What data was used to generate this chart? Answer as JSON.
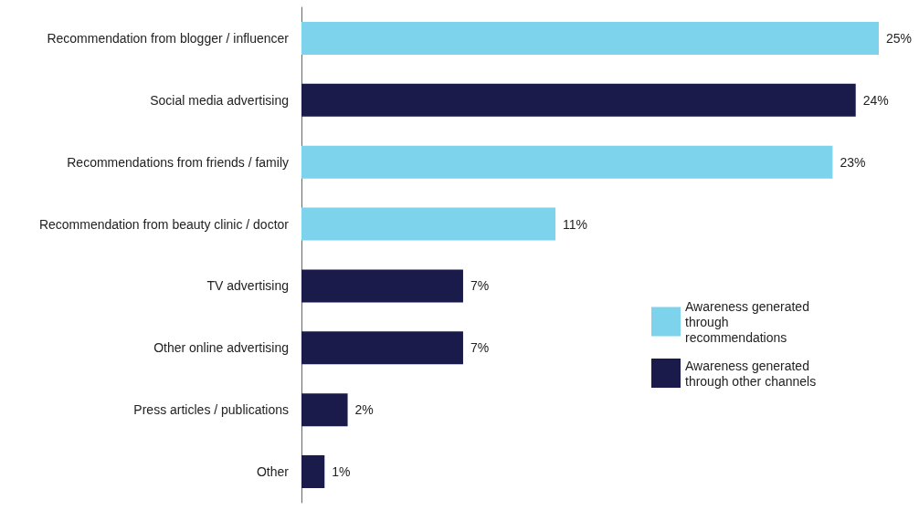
{
  "chart_data": {
    "type": "bar",
    "orientation": "horizontal",
    "categories": [
      "Recommendation from blogger / influencer",
      "Social media advertising",
      "Recommendations from friends / family",
      "Recommendation from beauty clinic / doctor",
      "TV advertising",
      "Other online advertising",
      "Press articles / publications",
      "Other"
    ],
    "series": [
      {
        "name": "Awareness generated through recommendations",
        "color": "#7dd3ec",
        "values": [
          25,
          null,
          23,
          11,
          null,
          null,
          null,
          null
        ],
        "value_labels": [
          "25%",
          null,
          "23%",
          "11%",
          null,
          null,
          null,
          null
        ]
      },
      {
        "name": "Awareness generated through other channels",
        "color": "#1a1b4b",
        "values": [
          null,
          24,
          null,
          null,
          7,
          7,
          2,
          1
        ],
        "value_labels": [
          null,
          "24%",
          null,
          null,
          "7%",
          "7%",
          "2%",
          "1%"
        ]
      }
    ],
    "legend": "right"
  }
}
